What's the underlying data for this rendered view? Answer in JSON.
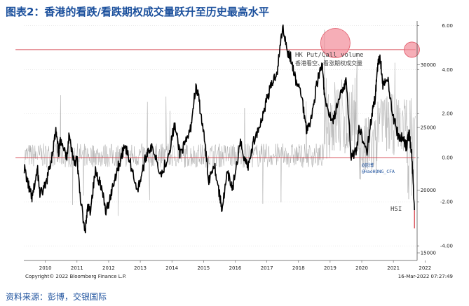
{
  "header": {
    "title": "图表2：香港的看跌/看跌期权成交量跃升至历史最高水平"
  },
  "footer": {
    "source": "资料来源：彭博，交银国际"
  },
  "chart_data": {
    "type": "line",
    "x_ticks": [
      "2010",
      "2011",
      "2012",
      "2013",
      "2014",
      "2015",
      "2016",
      "2017",
      "2018",
      "2019",
      "2020",
      "2021",
      "2022"
    ],
    "left_axis_ticks": [
      "30000",
      "25000",
      "20000",
      "15000"
    ],
    "right_axis_ticks": [
      "6.00",
      "4.00",
      "2.00",
      "0.00",
      "-2.00",
      "-4.00"
    ],
    "left_ylim": [
      14500,
      33500
    ],
    "right_ylim": [
      -4.6,
      6.2
    ],
    "series": [
      {
        "name": "HSI",
        "axis": "left",
        "color": "#000000"
      },
      {
        "name": "HK Put/Call volume",
        "axis": "right",
        "color": "#a8a8a8"
      }
    ],
    "hsi_points": [
      [
        "2009-11",
        21800
      ],
      [
        "2010-01",
        20000
      ],
      [
        "2010-02",
        19300
      ],
      [
        "2010-04",
        21700
      ],
      [
        "2010-05",
        19600
      ],
      [
        "2010-07",
        20300
      ],
      [
        "2010-09",
        22200
      ],
      [
        "2010-11",
        24700
      ],
      [
        "2010-12",
        23000
      ],
      [
        "2011-01",
        24200
      ],
      [
        "2011-03",
        22500
      ],
      [
        "2011-04",
        24400
      ],
      [
        "2011-06",
        22200
      ],
      [
        "2011-07",
        22500
      ],
      [
        "2011-08",
        20000
      ],
      [
        "2011-10",
        16500
      ],
      [
        "2011-11",
        18500
      ],
      [
        "2011-12",
        18400
      ],
      [
        "2012-02",
        21500
      ],
      [
        "2012-04",
        20500
      ],
      [
        "2012-06",
        18200
      ],
      [
        "2012-08",
        19800
      ],
      [
        "2012-10",
        21500
      ],
      [
        "2012-12",
        22700
      ],
      [
        "2013-01",
        23700
      ],
      [
        "2013-03",
        22300
      ],
      [
        "2013-06",
        20000
      ],
      [
        "2013-08",
        21700
      ],
      [
        "2013-10",
        23300
      ],
      [
        "2013-12",
        23300
      ],
      [
        "2014-03",
        21200
      ],
      [
        "2014-06",
        23100
      ],
      [
        "2014-08",
        25200
      ],
      [
        "2014-10",
        23000
      ],
      [
        "2014-12",
        23600
      ],
      [
        "2015-02",
        24800
      ],
      [
        "2015-04",
        28200
      ],
      [
        "2015-05",
        27500
      ],
      [
        "2015-07",
        24600
      ],
      [
        "2015-09",
        20800
      ],
      [
        "2015-11",
        22200
      ],
      [
        "2016-01",
        19700
      ],
      [
        "2016-02",
        18500
      ],
      [
        "2016-04",
        21300
      ],
      [
        "2016-06",
        20200
      ],
      [
        "2016-09",
        23700
      ],
      [
        "2016-11",
        22300
      ],
      [
        "2016-12",
        21900
      ],
      [
        "2017-02",
        23900
      ],
      [
        "2017-05",
        25600
      ],
      [
        "2017-07",
        27300
      ],
      [
        "2017-09",
        28500
      ],
      [
        "2017-11",
        29600
      ],
      [
        "2018-01",
        33100
      ],
      [
        "2018-03",
        31000
      ],
      [
        "2018-04",
        30600
      ],
      [
        "2018-06",
        28700
      ],
      [
        "2018-08",
        27800
      ],
      [
        "2018-10",
        24900
      ],
      [
        "2018-12",
        25800
      ],
      [
        "2019-02",
        28600
      ],
      [
        "2019-04",
        30000
      ],
      [
        "2019-05",
        27100
      ],
      [
        "2019-08",
        25500
      ],
      [
        "2019-10",
        26900
      ],
      [
        "2019-12",
        28200
      ],
      [
        "2020-01",
        28900
      ],
      [
        "2020-03",
        22800
      ],
      [
        "2020-05",
        23000
      ],
      [
        "2020-06",
        24900
      ],
      [
        "2020-09",
        23200
      ],
      [
        "2020-11",
        26300
      ],
      [
        "2020-12",
        27200
      ],
      [
        "2021-01",
        29900
      ],
      [
        "2021-02",
        30700
      ],
      [
        "2021-03",
        28400
      ],
      [
        "2021-05",
        28700
      ],
      [
        "2021-07",
        25800
      ],
      [
        "2021-09",
        24200
      ],
      [
        "2021-11",
        24100
      ],
      [
        "2021-12",
        23400
      ],
      [
        "2022-01",
        24600
      ],
      [
        "2022-02",
        22700
      ],
      [
        "2022-03",
        18400
      ]
    ],
    "putcall_reference_lines": [
      4.9,
      0.0
    ],
    "highlight_circles": [
      {
        "date": "2019-09",
        "value": 5.2
      },
      {
        "date": "2022-02",
        "value": 4.9
      }
    ],
    "annotations": {
      "legend_title": "HK Put/Call volume",
      "legend_subtitle": "香港看空、看涨期权成交量",
      "watermark_line1": "@彭博",
      "watermark_line2": "@HaoHONG_CFA",
      "hsi_label": "HSI",
      "copyright": "Copyright© 2022 Bloomberg Finance L.P.",
      "timestamp": "16-Mar-2022 07:27:49"
    }
  }
}
